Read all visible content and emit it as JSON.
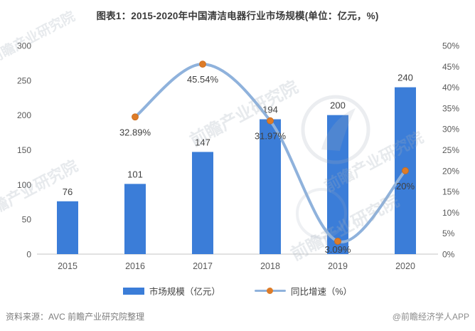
{
  "title": "图表1：2015-2020年中国清洁电器行业市场规模(单位：亿元，%)",
  "chart_data": {
    "type": "bar",
    "subtype": "bar-line-combo",
    "title": "图表1：2015-2020年中国清洁电器行业市场规模(单位：亿元，%)",
    "categories": [
      "2015",
      "2016",
      "2017",
      "2018",
      "2019",
      "2020"
    ],
    "series": [
      {
        "name": "市场规模（亿元）",
        "type": "bar",
        "axis": "left",
        "values": [
          76,
          101,
          147,
          194,
          200,
          240
        ],
        "color": "#3b7dd8"
      },
      {
        "name": "同比增速（%）",
        "type": "line",
        "axis": "right",
        "values": [
          null,
          32.89,
          45.54,
          31.97,
          3.09,
          20
        ],
        "point_labels": [
          "",
          "32.89%",
          "45.54%",
          "31.97%",
          "3.09%",
          "20%"
        ],
        "line_color": "#8fb2dc",
        "marker_color": "#dd7c28"
      }
    ],
    "left_axis": {
      "min": 0,
      "max": 300,
      "step": 50,
      "ticks": [
        "0",
        "50",
        "100",
        "150",
        "200",
        "250",
        "300"
      ]
    },
    "right_axis": {
      "min": 0,
      "max": 50,
      "step": 5,
      "ticks": [
        "0%",
        "5%",
        "10%",
        "15%",
        "20%",
        "25%",
        "30%",
        "35%",
        "40%",
        "45%",
        "50%"
      ]
    },
    "legend": [
      "市场规模（亿元）",
      "同比增速（%）"
    ],
    "legend_position": "bottom",
    "grid": false,
    "smooth_line": true
  },
  "watermark": {
    "text": "前瞻产业研究院"
  },
  "footer": {
    "source": "资料来源：AVC 前瞻产业研究院整理",
    "credit": "@前瞻经济学人APP"
  }
}
